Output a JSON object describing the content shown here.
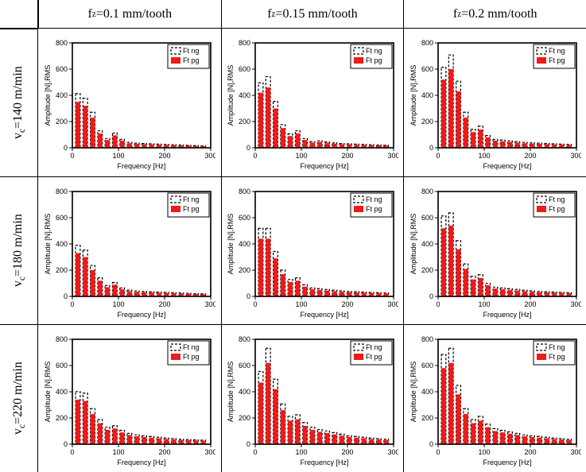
{
  "columns": [
    {
      "key": "c1",
      "label_html": "f<sub>z</sub>=0.1 mm/tooth"
    },
    {
      "key": "c2",
      "label_html": "f<sub>z</sub>=0.15 mm/tooth"
    },
    {
      "key": "c3",
      "label_html": "f<sub>z</sub>=0.2 mm/tooth"
    }
  ],
  "rows": [
    {
      "key": "r1",
      "label_html": "v<sub>c</sub>=140 m/min"
    },
    {
      "key": "r2",
      "label_html": "v<sub>c</sub>=180 m/min"
    },
    {
      "key": "r3",
      "label_html": "v<sub>c</sub>=220 m/min"
    }
  ],
  "chart_common": {
    "type": "bar",
    "xlabel": "Frequency [Hz]",
    "ylabel": "Amplitude [N],RMS",
    "xlim": [
      0,
      300
    ],
    "ylim": [
      0,
      800
    ],
    "xtick_step": 100,
    "ytick_step": 200,
    "background_color": "#ffffff",
    "axis_color": "#000000",
    "axis_line_width": 1.4,
    "tick_font_size": 9,
    "label_font_size": 9,
    "bar_count": 18,
    "bar_spacing_hz": 16,
    "bar_first_hz": 12,
    "bar_width_hz": 10,
    "series": [
      {
        "name": "Ft ng",
        "type": "bar-outline-dashed",
        "color": "#000000",
        "dash": "3,2",
        "line_width": 1.2
      },
      {
        "name": "Ft pg",
        "type": "bar-fill",
        "color": "#ef1a1a"
      }
    ],
    "legend": {
      "position": "upper-right",
      "font_size": 9,
      "border_color": "#000000",
      "bg_color": "#ffffff"
    },
    "ng_scale": 1.18
  },
  "charts": {
    "r1c1": {
      "pg": [
        350,
        320,
        230,
        110,
        60,
        95,
        55,
        35,
        30,
        28,
        26,
        24,
        22,
        20,
        18,
        16,
        14,
        12
      ]
    },
    "r1c2": {
      "pg": [
        420,
        460,
        300,
        150,
        90,
        110,
        60,
        40,
        46,
        38,
        32,
        28,
        26,
        24,
        22,
        20,
        18,
        16
      ]
    },
    "r1c3": {
      "pg": [
        520,
        600,
        430,
        230,
        120,
        140,
        80,
        55,
        50,
        45,
        40,
        35,
        32,
        30,
        28,
        26,
        24,
        22
      ]
    },
    "r2c1": {
      "pg": [
        330,
        300,
        200,
        120,
        70,
        90,
        55,
        40,
        35,
        32,
        30,
        28,
        26,
        24,
        22,
        20,
        18,
        16
      ]
    },
    "r2c2": {
      "pg": [
        440,
        440,
        290,
        170,
        110,
        120,
        75,
        55,
        50,
        45,
        40,
        36,
        32,
        30,
        28,
        26,
        24,
        22
      ]
    },
    "r2c3": {
      "pg": [
        520,
        540,
        360,
        210,
        130,
        140,
        85,
        60,
        55,
        50,
        45,
        40,
        36,
        32,
        30,
        28,
        26,
        24
      ]
    },
    "r3c1": {
      "pg": [
        340,
        330,
        230,
        160,
        110,
        120,
        90,
        70,
        60,
        55,
        50,
        45,
        40,
        36,
        32,
        30,
        28,
        26
      ]
    },
    "r3c2": {
      "pg": [
        470,
        620,
        420,
        260,
        180,
        190,
        140,
        110,
        95,
        85,
        75,
        65,
        55,
        50,
        45,
        40,
        36,
        32
      ]
    },
    "r3c3": {
      "pg": [
        580,
        620,
        380,
        230,
        160,
        180,
        130,
        100,
        90,
        80,
        70,
        60,
        55,
        50,
        45,
        40,
        36,
        32
      ]
    }
  }
}
